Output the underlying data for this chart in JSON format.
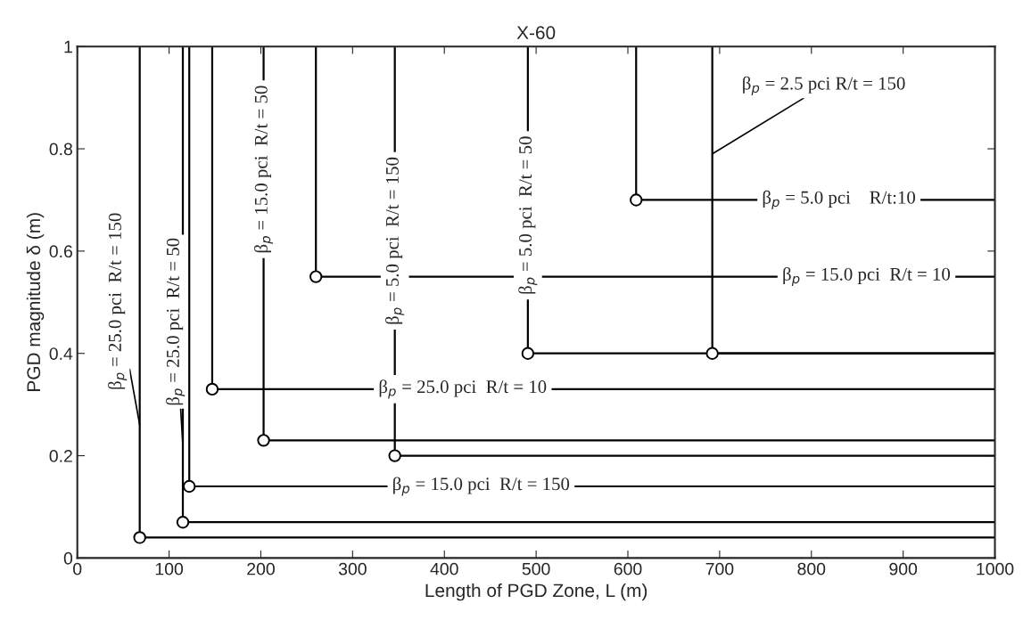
{
  "chart_data": {
    "type": "line",
    "title": "X-60",
    "xlabel": "Length of PGD Zone, L (m)",
    "ylabel": "PGD magnitude δ (m)",
    "xlim": [
      0,
      1000
    ],
    "xticks": [
      0,
      100,
      200,
      300,
      400,
      500,
      600,
      700,
      800,
      900,
      1000
    ],
    "ylim": [
      0,
      1
    ],
    "yticks": [
      0,
      0.2,
      0.4,
      0.6,
      0.8,
      1
    ],
    "grid": false,
    "line_style": "solid",
    "series": [
      {
        "color": "#000000",
        "x": [
          68,
          68,
          1000
        ],
        "values": [
          1,
          0.04,
          0.04
        ]
      },
      {
        "color": "#000000",
        "x": [
          115,
          115,
          1000
        ],
        "values": [
          1,
          0.07,
          0.07
        ]
      },
      {
        "color": "#000000",
        "x": [
          122,
          122,
          1000
        ],
        "values": [
          1,
          0.14,
          0.14
        ]
      },
      {
        "color": "#000000",
        "x": [
          147,
          147,
          1000
        ],
        "values": [
          1,
          0.33,
          0.33
        ]
      },
      {
        "color": "#000000",
        "x": [
          203,
          203,
          1000
        ],
        "values": [
          1,
          0.23,
          0.23
        ]
      },
      {
        "color": "#000000",
        "x": [
          260,
          260,
          1000
        ],
        "values": [
          1,
          0.55,
          0.55
        ]
      },
      {
        "color": "#000000",
        "x": [
          346,
          346,
          1000
        ],
        "values": [
          1,
          0.2,
          0.2
        ]
      },
      {
        "color": "#000000",
        "x": [
          491,
          491,
          1000
        ],
        "values": [
          1,
          0.4,
          0.4
        ]
      },
      {
        "color": "#000000",
        "x": [
          609,
          609,
          1000
        ],
        "values": [
          1,
          0.7,
          0.7
        ]
      },
      {
        "color": "#000000",
        "x": [
          692,
          692,
          1000
        ],
        "values": [
          1,
          0.4,
          0.4
        ]
      },
      {
        "type": "scatter",
        "color": "#000000",
        "marker": "circle",
        "x": [
          68,
          115,
          122,
          147,
          203,
          260,
          346,
          491,
          609,
          692
        ],
        "values": [
          0.04,
          0.07,
          0.14,
          0.33,
          0.23,
          0.55,
          0.2,
          0.4,
          0.7,
          0.4
        ]
      }
    ],
    "annotations": [
      {
        "text": "β$_{p}$ = 25.0 pci  R/t = 150",
        "x": 68,
        "y": 0.26
      },
      {
        "text": "β$_{p}$ = 25.0 pci  R/t = 50",
        "x": 115,
        "y": 0.22
      },
      {
        "text": "β$_{p}$ = 15.0 pci  R/t = 50",
        "x": 203,
        "y": 0.76
      },
      {
        "text": "β$_{p}$ = 5.0 pci  R/t = 150",
        "x": 346,
        "y": 0.62
      },
      {
        "text": "β$_{p}$ = 5.0 pci  R/t = 50",
        "x": 491,
        "y": 0.67
      },
      {
        "text": "β$_{p}$ = 2.5 pci R/t = 150",
        "x": 692,
        "y": 0.79
      },
      {
        "text": "β$_{p}$ = 5.0 pci    R/t:10",
        "x": 830,
        "y": 0.7
      },
      {
        "text": "β$_{p}$ = 15.0 pci  R/t = 10",
        "x": 860,
        "y": 0.55
      },
      {
        "text": "β$_{p}$ = 25.0 pci  R/t = 10",
        "x": 420,
        "y": 0.33
      },
      {
        "text": "β$_{p}$ = 15.0 pci  R/t = 150",
        "x": 440,
        "y": 0.14
      }
    ]
  }
}
